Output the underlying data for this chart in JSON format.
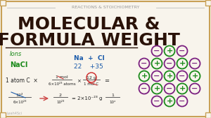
{
  "bg_color": "#f8f4ec",
  "border_color": "#c8a055",
  "title_top": "REACTIONS & STOICHIOMETRY",
  "title_main_1": "MOLECULAR &",
  "title_main_2": "FORMULA WEIGHT",
  "title_color": "#2a1208",
  "green_color": "#1a8a1a",
  "blue_color": "#1a5aaa",
  "gray_color": "#555555",
  "red_color": "#cc2222",
  "plus_color": "#1a8a1a",
  "minus_color": "#7b2080",
  "watermark": "Leah4Sci",
  "ion_rows": [
    [
      {
        "t": "m"
      },
      {
        "t": "p"
      },
      {
        "t": "m"
      }
    ],
    [
      {
        "t": "m"
      },
      {
        "t": "p"
      },
      {
        "t": "m"
      },
      {
        "t": "p"
      },
      {
        "t": "m"
      }
    ],
    [
      {
        "t": "p"
      },
      {
        "t": "m"
      },
      {
        "t": "p"
      },
      {
        "t": "m"
      },
      {
        "t": "p"
      }
    ],
    [
      {
        "t": "m"
      },
      {
        "t": "p"
      },
      {
        "t": "m"
      },
      {
        "t": "p"
      },
      {
        "t": "m"
      }
    ],
    [
      {
        "t": "m"
      },
      {
        "t": "p"
      },
      {
        "t": "m"
      }
    ]
  ]
}
